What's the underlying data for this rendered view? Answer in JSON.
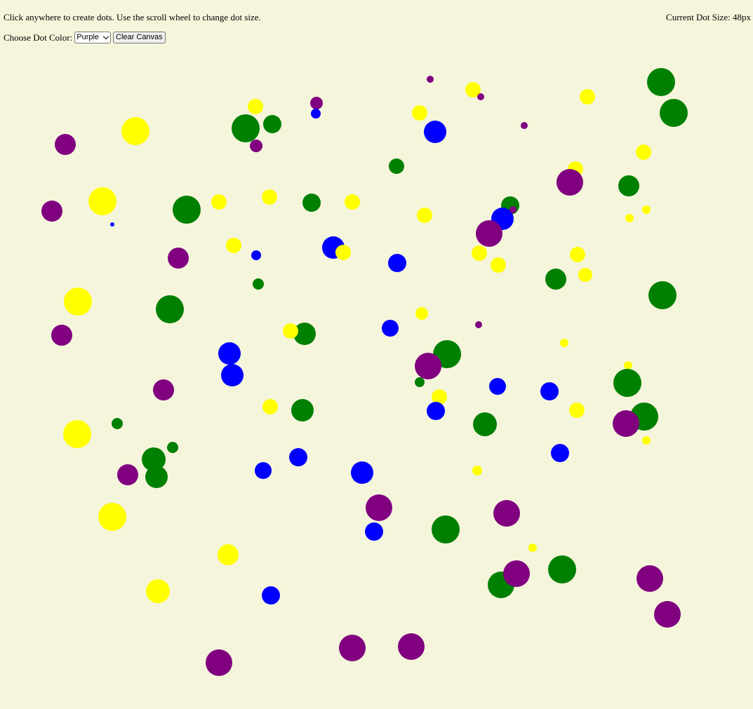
{
  "header": {
    "instructions": "Click anywhere to create dots. Use the scroll wheel to change dot size.",
    "size_prefix": "Current Dot Size: ",
    "size_value": "48px"
  },
  "controls": {
    "color_label": "Choose Dot Color:",
    "selected_color": "Purple",
    "clear_label": "Clear Canvas"
  },
  "colors": {
    "purple": "#800080",
    "green": "#008000",
    "blue": "#0000ff",
    "yellow": "#ffff00"
  }
}
